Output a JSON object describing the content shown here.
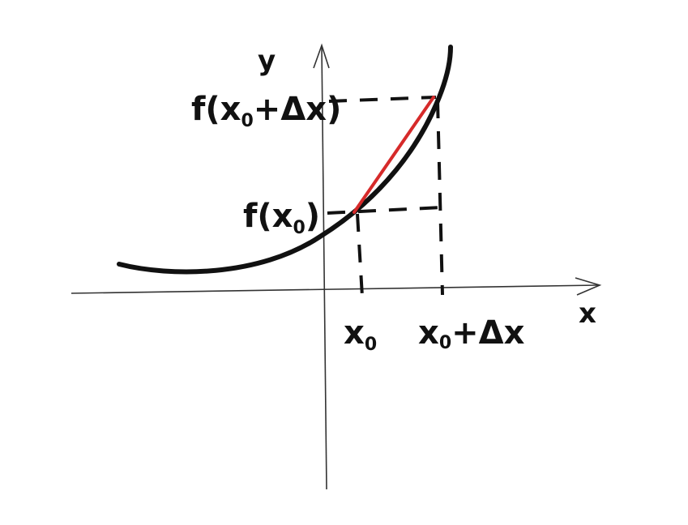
{
  "diagram": {
    "axes": {
      "x_label": "x",
      "y_label": "y"
    },
    "x_ticks": [
      {
        "main": "x",
        "sub": "0",
        "rest": ""
      },
      {
        "main": "x",
        "sub": "0",
        "rest": "+Δx"
      }
    ],
    "y_ticks": [
      {
        "pre": "f(x",
        "sub": "0",
        "post": ")"
      },
      {
        "pre": "f(x",
        "sub": "0",
        "post": "+Δx)"
      }
    ],
    "colors": {
      "curve": "#111111",
      "secant": "#d62a2a",
      "axes": "#333333",
      "guides": "#111111"
    }
  }
}
